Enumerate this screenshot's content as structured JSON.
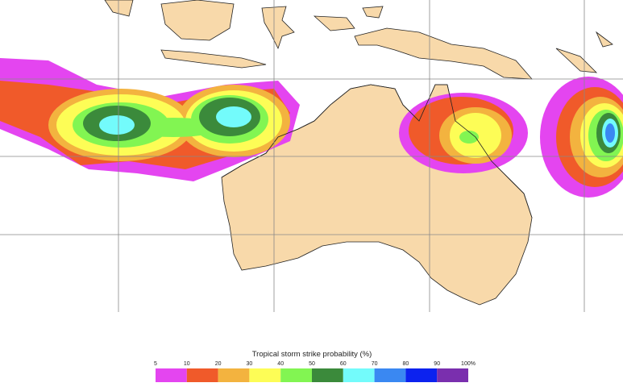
{
  "legend": {
    "title": "Tropical storm strike probability (%)",
    "labels": [
      "5",
      "10",
      "20",
      "30",
      "40",
      "50",
      "60",
      "70",
      "80",
      "90",
      "100%"
    ],
    "colors": [
      "#e445f0",
      "#f05a2a",
      "#f3b33f",
      "#fdfd56",
      "#82f552",
      "#3b8a3b",
      "#73fbfb",
      "#3a88f2",
      "#0c22ef",
      "#7a2fae"
    ]
  }
}
